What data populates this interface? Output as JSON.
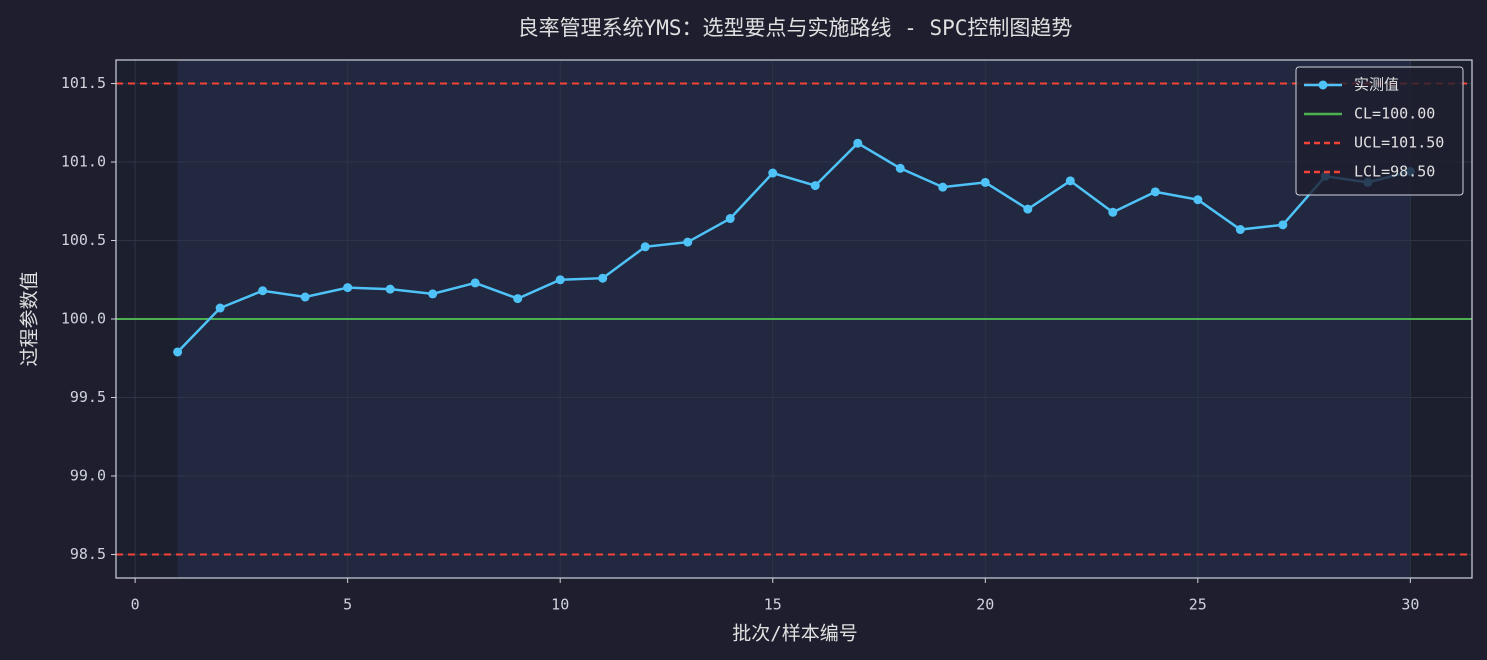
{
  "chart_data": {
    "type": "line",
    "title": "良率管理系统YMS：选型要点与实施路线 - SPC控制图趋势",
    "xlabel": "批次/样本编号",
    "ylabel": "过程参数值",
    "x": [
      1,
      2,
      3,
      4,
      5,
      6,
      7,
      8,
      9,
      10,
      11,
      12,
      13,
      14,
      15,
      16,
      17,
      18,
      19,
      20,
      21,
      22,
      23,
      24,
      25,
      26,
      27,
      28,
      29,
      30
    ],
    "series": [
      {
        "name": "实测值",
        "color": "#4fc3f7",
        "values": [
          99.79,
          100.07,
          100.18,
          100.14,
          100.2,
          100.19,
          100.16,
          100.23,
          100.13,
          100.25,
          100.26,
          100.46,
          100.49,
          100.64,
          100.93,
          100.85,
          101.12,
          100.96,
          100.84,
          100.87,
          100.7,
          100.88,
          100.68,
          100.81,
          100.76,
          100.57,
          100.6,
          100.91,
          100.87,
          100.94
        ]
      }
    ],
    "reference_lines": [
      {
        "name": "CL=100.00",
        "value": 100,
        "color": "#4caf50",
        "dashed": false
      },
      {
        "name": "UCL=101.50",
        "value": 101.5,
        "color": "#f44336",
        "dashed": true
      },
      {
        "name": "LCL=98.50",
        "value": 98.5,
        "color": "#f44336",
        "dashed": true
      }
    ],
    "span": [
      1,
      30
    ],
    "xlim": [
      -0.45,
      31.45
    ],
    "ylim": [
      98.35,
      101.65
    ],
    "xticks": [
      0,
      5,
      10,
      15,
      20,
      25,
      30
    ],
    "yticks": [
      98.5,
      {
        "value": 99,
        "label": "99.0"
      },
      99.5,
      {
        "value": 100,
        "label": "100.0"
      },
      100.5,
      {
        "value": 101,
        "label": "101.0"
      },
      101.5
    ],
    "grid": true,
    "legend": "upper right"
  }
}
